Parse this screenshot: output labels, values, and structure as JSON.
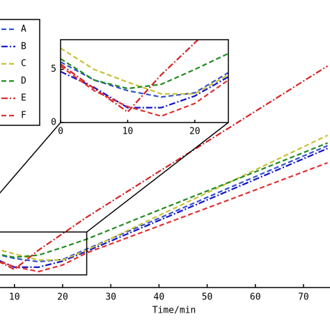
{
  "chart_data": {
    "type": "line",
    "x_label": "Time/min",
    "x": [
      0,
      5,
      10,
      15,
      20,
      25,
      40,
      55,
      75
    ],
    "series": [
      {
        "name": "A",
        "color": "#3050d0",
        "dash": "dashed",
        "values": [
          5.7,
          4,
          3,
          2.4,
          2.8,
          4.7,
          10.3,
          16,
          23.5
        ]
      },
      {
        "name": "B",
        "color": "#1010c8",
        "dash": "dashdot",
        "values": [
          4.8,
          3.3,
          1.4,
          1.4,
          2.5,
          4.3,
          9.9,
          15.5,
          23
        ]
      },
      {
        "name": "C",
        "color": "#c8c030",
        "dash": "dashed",
        "values": [
          7,
          5,
          3.8,
          2.7,
          2.7,
          4.5,
          10.8,
          17,
          25.4
        ]
      },
      {
        "name": "D",
        "color": "#208a20",
        "dash": "dashed",
        "values": [
          6,
          4,
          3.2,
          3.6,
          5,
          6.5,
          11.8,
          17,
          24
        ]
      },
      {
        "name": "E",
        "color": "#d42020",
        "dash": "dashdot",
        "values": [
          5.5,
          3.2,
          1,
          4.5,
          7.5,
          10.5,
          18.8,
          27,
          38
        ]
      },
      {
        "name": "F",
        "color": "#e03030",
        "dash": "dashed",
        "values": [
          5.3,
          3,
          1.5,
          0.6,
          1.8,
          4,
          8.9,
          13.8,
          20.4
        ]
      }
    ],
    "xlim": [
      7,
      75.5
    ],
    "ylim": [
      -2.3,
      50
    ],
    "xticks": [
      10,
      20,
      30,
      40,
      50,
      60,
      70
    ],
    "legend": "upper left",
    "inset": {
      "xlim": [
        0,
        25
      ],
      "ylim": [
        0,
        7.8
      ],
      "xticks": [
        0,
        10,
        20
      ],
      "yticks": [
        0,
        5
      ]
    }
  }
}
